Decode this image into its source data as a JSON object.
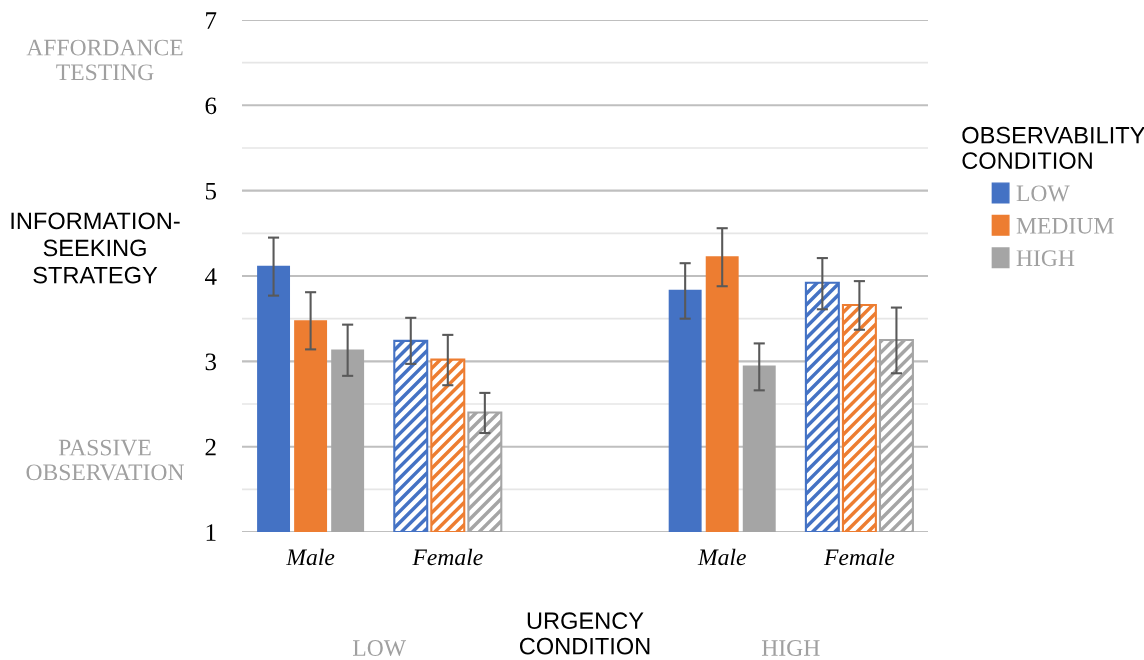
{
  "chart_data": {
    "type": "bar",
    "categories": [
      "Male",
      "Female",
      null,
      "Male",
      "Female"
    ],
    "series": [
      {
        "name": "LOW",
        "color": "#4472c4",
        "values": [
          4.12,
          3.24,
          null,
          3.84,
          3.92
        ],
        "errors": [
          [
            3.77,
            4.45
          ],
          [
            2.97,
            3.51
          ],
          null,
          [
            3.5,
            4.15
          ],
          [
            3.61,
            4.21
          ]
        ]
      },
      {
        "name": "MEDIUM",
        "color": "#ed7d31",
        "values": [
          3.48,
          3.02,
          null,
          4.23,
          3.66
        ],
        "errors": [
          [
            3.14,
            3.81
          ],
          [
            2.72,
            3.31
          ],
          null,
          [
            3.88,
            4.56
          ],
          [
            3.37,
            3.94
          ]
        ]
      },
      {
        "name": "HIGH",
        "color": "#a5a5a5",
        "values": [
          3.14,
          2.4,
          null,
          2.95,
          3.25
        ],
        "errors": [
          [
            2.83,
            3.43
          ],
          [
            2.16,
            2.63
          ],
          null,
          [
            2.66,
            3.21
          ],
          [
            2.86,
            3.63
          ]
        ]
      }
    ],
    "ylim": [
      1,
      7
    ],
    "yticks": [
      1,
      {
        "value": 1.5,
        "label": null
      },
      2,
      {
        "value": 2.5,
        "label": null
      },
      3,
      {
        "value": 3.5,
        "label": null
      },
      4,
      {
        "value": 4.5,
        "label": null
      },
      5,
      {
        "value": 5.5,
        "label": null
      },
      6,
      {
        "value": 6.5,
        "label": null
      },
      7
    ],
    "grid": "y",
    "ylabel": "INFORMATION-\nSEEKING\nSTRATEGY",
    "xlabel": "URGENCY\nCONDITION",
    "legend_title": "OBSERVABILITY\nCONDITION",
    "legend": "right",
    "annotations": [
      "AFFORDANCE\nTESTING",
      "PASSIVE\nOBSERVATION",
      "LOW",
      "HIGH"
    ]
  }
}
